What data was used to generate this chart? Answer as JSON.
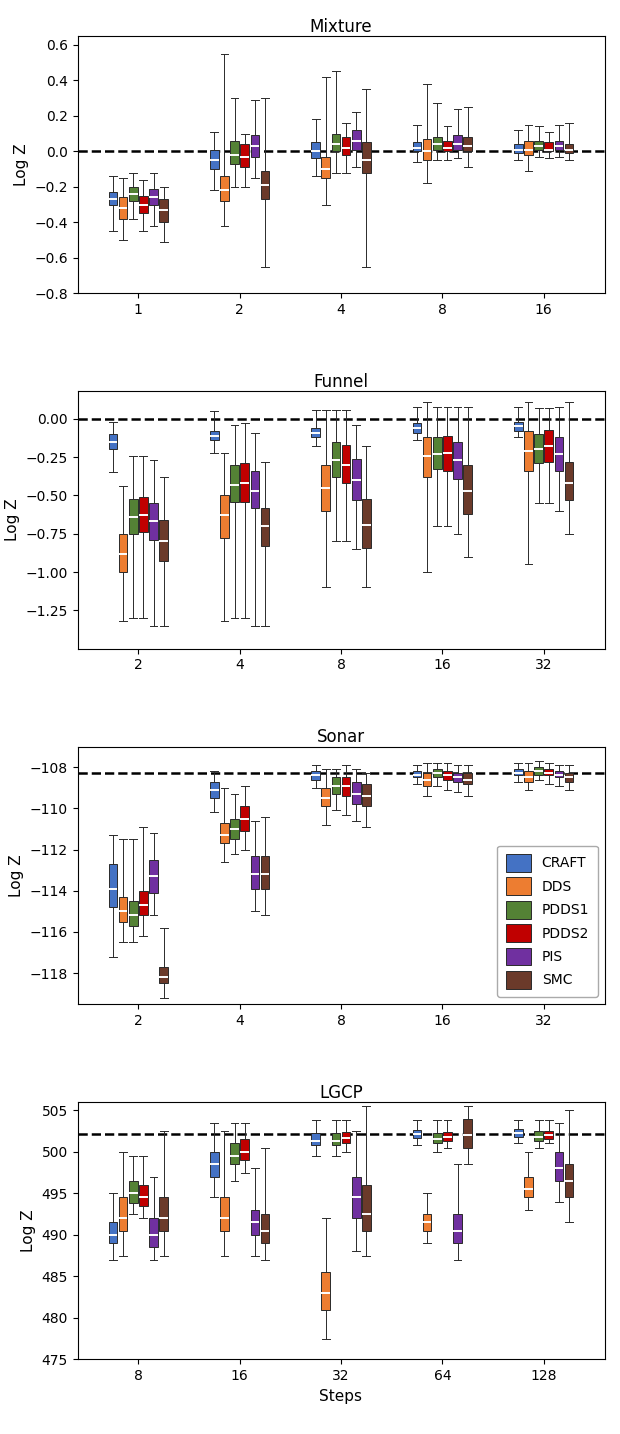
{
  "panels": [
    {
      "title": "Mixture",
      "ylabel": "Log Z",
      "ylim": [
        -0.8,
        0.65
      ],
      "yticks": [
        -0.8,
        -0.6,
        -0.4,
        -0.2,
        0.0,
        0.2,
        0.4,
        0.6
      ],
      "hline": 0.0,
      "xticklabels": [
        "1",
        "2",
        "4",
        "8",
        "16"
      ],
      "xpositions": [
        1,
        2,
        4,
        8,
        16
      ],
      "series": {
        "CRAFT": [
          [
            -0.45,
            -0.3,
            -0.27,
            -0.23,
            -0.14
          ],
          [
            -0.22,
            -0.1,
            -0.05,
            0.01,
            0.11
          ],
          [
            -0.14,
            -0.04,
            0.0,
            0.05,
            0.18
          ],
          [
            -0.06,
            0.0,
            0.02,
            0.05,
            0.15
          ],
          [
            -0.05,
            -0.01,
            0.01,
            0.04,
            0.12
          ]
        ],
        "DDS": [
          [
            -0.5,
            -0.38,
            -0.32,
            -0.26,
            -0.15
          ],
          [
            -0.42,
            -0.28,
            -0.22,
            -0.14,
            0.55
          ],
          [
            -0.3,
            -0.15,
            -0.1,
            -0.03,
            0.42
          ],
          [
            -0.18,
            -0.05,
            0.0,
            0.07,
            0.38
          ],
          [
            -0.11,
            -0.02,
            0.01,
            0.06,
            0.15
          ]
        ],
        "PDDS1": [
          [
            -0.38,
            -0.28,
            -0.24,
            -0.2,
            -0.12
          ],
          [
            -0.2,
            -0.07,
            -0.02,
            0.06,
            0.3
          ],
          [
            -0.12,
            0.0,
            0.04,
            0.1,
            0.45
          ],
          [
            -0.05,
            0.01,
            0.04,
            0.08,
            0.27
          ],
          [
            -0.03,
            0.01,
            0.03,
            0.06,
            0.14
          ]
        ],
        "PDDS2": [
          [
            -0.45,
            -0.35,
            -0.3,
            -0.25,
            -0.16
          ],
          [
            -0.2,
            -0.09,
            -0.03,
            0.04,
            0.1
          ],
          [
            -0.12,
            -0.02,
            0.02,
            0.08,
            0.16
          ],
          [
            -0.05,
            0.0,
            0.02,
            0.06,
            0.14
          ],
          [
            -0.04,
            0.0,
            0.01,
            0.05,
            0.11
          ]
        ],
        "PIS": [
          [
            -0.42,
            -0.3,
            -0.26,
            -0.21,
            -0.12
          ],
          [
            -0.15,
            -0.03,
            0.03,
            0.09,
            0.29
          ],
          [
            -0.09,
            0.01,
            0.06,
            0.12,
            0.22
          ],
          [
            -0.04,
            0.01,
            0.04,
            0.09,
            0.24
          ],
          [
            -0.03,
            0.01,
            0.03,
            0.06,
            0.15
          ]
        ],
        "SMC": [
          [
            -0.51,
            -0.4,
            -0.33,
            -0.27,
            -0.2
          ],
          [
            -0.65,
            -0.27,
            -0.19,
            -0.11,
            0.3
          ],
          [
            -0.65,
            -0.12,
            -0.05,
            0.05,
            0.35
          ],
          [
            -0.09,
            0.0,
            0.03,
            0.08,
            0.25
          ],
          [
            -0.05,
            -0.01,
            0.01,
            0.04,
            0.16
          ]
        ]
      }
    },
    {
      "title": "Funnel",
      "ylabel": "Log Z",
      "ylim": [
        -1.5,
        0.18
      ],
      "yticks": [
        -1.25,
        -1.0,
        -0.75,
        -0.5,
        -0.25,
        0.0
      ],
      "hline": 0.0,
      "xticklabels": [
        "2",
        "4",
        "8",
        "16",
        "32"
      ],
      "xpositions": [
        2,
        4,
        8,
        16,
        32
      ],
      "series": {
        "CRAFT": [
          [
            -0.35,
            -0.2,
            -0.15,
            -0.1,
            -0.02
          ],
          [
            -0.22,
            -0.14,
            -0.11,
            -0.08,
            0.05
          ],
          [
            -0.18,
            -0.12,
            -0.09,
            -0.06,
            0.06
          ],
          [
            -0.14,
            -0.09,
            -0.06,
            -0.03,
            0.08
          ],
          [
            -0.12,
            -0.08,
            -0.05,
            -0.02,
            0.08
          ]
        ],
        "DDS": [
          [
            -1.32,
            -1.0,
            -0.88,
            -0.75,
            -0.44
          ],
          [
            -1.32,
            -0.78,
            -0.63,
            -0.5,
            -0.22
          ],
          [
            -1.1,
            -0.6,
            -0.45,
            -0.3,
            0.06
          ],
          [
            -1.0,
            -0.38,
            -0.24,
            -0.12,
            0.11
          ],
          [
            -0.95,
            -0.34,
            -0.21,
            -0.08,
            0.11
          ]
        ],
        "PDDS1": [
          [
            -1.3,
            -0.75,
            -0.64,
            -0.52,
            -0.24
          ],
          [
            -1.3,
            -0.54,
            -0.43,
            -0.3,
            -0.04
          ],
          [
            -0.8,
            -0.38,
            -0.27,
            -0.15,
            0.06
          ],
          [
            -0.7,
            -0.33,
            -0.23,
            -0.12,
            0.08
          ],
          [
            -0.55,
            -0.29,
            -0.2,
            -0.1,
            0.07
          ]
        ],
        "PDDS2": [
          [
            -1.3,
            -0.74,
            -0.63,
            -0.51,
            -0.24
          ],
          [
            -1.3,
            -0.54,
            -0.42,
            -0.29,
            -0.03
          ],
          [
            -0.8,
            -0.42,
            -0.3,
            -0.17,
            0.06
          ],
          [
            -0.7,
            -0.34,
            -0.22,
            -0.11,
            0.08
          ],
          [
            -0.55,
            -0.28,
            -0.18,
            -0.07,
            0.07
          ]
        ],
        "PIS": [
          [
            -1.35,
            -0.79,
            -0.67,
            -0.55,
            -0.27
          ],
          [
            -1.35,
            -0.58,
            -0.47,
            -0.34,
            -0.09
          ],
          [
            -0.85,
            -0.53,
            -0.4,
            -0.26,
            -0.04
          ],
          [
            -0.75,
            -0.39,
            -0.27,
            -0.15,
            0.08
          ],
          [
            -0.6,
            -0.34,
            -0.23,
            -0.12,
            0.08
          ]
        ],
        "SMC": [
          [
            -1.35,
            -0.93,
            -0.8,
            -0.66,
            -0.38
          ],
          [
            -1.35,
            -0.83,
            -0.7,
            -0.58,
            -0.28
          ],
          [
            -1.1,
            -0.84,
            -0.69,
            -0.52,
            -0.18
          ],
          [
            -0.9,
            -0.62,
            -0.47,
            -0.3,
            0.08
          ],
          [
            -0.75,
            -0.53,
            -0.42,
            -0.28,
            0.11
          ]
        ]
      }
    },
    {
      "title": "Sonar",
      "ylabel": "Log Z",
      "ylim": [
        -119.5,
        -107.0
      ],
      "yticks": [
        -118,
        -116,
        -114,
        -112,
        -110,
        -108
      ],
      "hline": -108.3,
      "xticklabels": [
        "2",
        "4",
        "8",
        "16",
        "32"
      ],
      "xpositions": [
        2,
        4,
        8,
        16,
        32
      ],
      "series": {
        "CRAFT": [
          [
            -117.2,
            -114.8,
            -113.9,
            -112.7,
            -111.3
          ],
          [
            -110.2,
            -109.5,
            -109.1,
            -108.7,
            -108.2
          ],
          [
            -109.0,
            -108.6,
            -108.4,
            -108.2,
            -107.9
          ],
          [
            -108.8,
            -108.5,
            -108.4,
            -108.2,
            -107.9
          ],
          [
            -108.7,
            -108.4,
            -108.3,
            -108.1,
            -107.8
          ]
        ],
        "DDS": [
          [
            -116.5,
            -115.5,
            -115.0,
            -114.3,
            -111.5
          ],
          [
            -112.6,
            -111.7,
            -111.3,
            -110.7,
            -109.0
          ],
          [
            -110.8,
            -109.9,
            -109.5,
            -109.0,
            -108.1
          ],
          [
            -109.4,
            -108.9,
            -108.6,
            -108.3,
            -107.8
          ],
          [
            -109.1,
            -108.7,
            -108.5,
            -108.2,
            -107.8
          ]
        ],
        "PDDS1": [
          [
            -116.5,
            -115.7,
            -115.2,
            -114.5,
            -111.5
          ],
          [
            -112.2,
            -111.5,
            -111.0,
            -110.5,
            -109.3
          ],
          [
            -110.1,
            -109.3,
            -108.9,
            -108.5,
            -108.1
          ],
          [
            -108.9,
            -108.5,
            -108.3,
            -108.1,
            -107.8
          ],
          [
            -108.6,
            -108.4,
            -108.2,
            -108.0,
            -107.7
          ]
        ],
        "PDDS2": [
          [
            -116.2,
            -115.2,
            -114.7,
            -114.0,
            -110.9
          ],
          [
            -112.0,
            -111.1,
            -110.5,
            -109.9,
            -108.9
          ],
          [
            -110.3,
            -109.4,
            -108.9,
            -108.5,
            -107.9
          ],
          [
            -109.1,
            -108.6,
            -108.4,
            -108.2,
            -107.8
          ],
          [
            -108.8,
            -108.4,
            -108.3,
            -108.1,
            -107.8
          ]
        ],
        "PIS": [
          [
            -115.2,
            -114.1,
            -113.3,
            -112.5,
            -111.2
          ],
          [
            -115.0,
            -113.9,
            -113.2,
            -112.3,
            -110.6
          ],
          [
            -110.6,
            -109.8,
            -109.3,
            -108.7,
            -108.1
          ],
          [
            -109.2,
            -108.7,
            -108.5,
            -108.3,
            -107.9
          ],
          [
            -108.9,
            -108.5,
            -108.4,
            -108.2,
            -107.9
          ]
        ],
        "SMC": [
          [
            -119.2,
            -118.5,
            -118.2,
            -117.7,
            -115.8
          ],
          [
            -115.2,
            -113.9,
            -113.2,
            -112.3,
            -110.4
          ],
          [
            -110.9,
            -109.9,
            -109.4,
            -108.8,
            -108.3
          ],
          [
            -109.4,
            -108.8,
            -108.6,
            -108.3,
            -107.9
          ],
          [
            -109.1,
            -108.7,
            -108.5,
            -108.3,
            -107.9
          ]
        ]
      }
    },
    {
      "title": "LGCP",
      "ylabel": "Log Z",
      "ylim": [
        475,
        506
      ],
      "yticks": [
        475,
        480,
        485,
        490,
        495,
        500,
        505
      ],
      "hline": 502.1,
      "xticklabels": [
        "8",
        "16",
        "32",
        "64",
        "128"
      ],
      "xpositions": [
        8,
        16,
        32,
        64,
        128
      ],
      "series": {
        "CRAFT": [
          [
            487.0,
            489.0,
            490.0,
            491.5,
            495.0
          ],
          [
            494.5,
            497.0,
            498.5,
            500.0,
            503.5
          ],
          [
            499.5,
            500.8,
            501.3,
            502.2,
            503.8
          ],
          [
            500.8,
            501.7,
            502.1,
            502.6,
            503.8
          ],
          [
            501.0,
            501.8,
            502.2,
            502.7,
            503.8
          ]
        ],
        "DDS": [
          [
            487.5,
            490.5,
            492.0,
            494.5,
            500.0
          ],
          [
            487.5,
            490.5,
            492.0,
            494.5,
            502.5
          ],
          [
            477.5,
            481.0,
            483.0,
            485.5,
            492.0
          ],
          [
            489.0,
            490.5,
            491.5,
            492.5,
            495.0
          ],
          [
            493.0,
            494.5,
            495.5,
            497.0,
            500.0
          ]
        ],
        "PDDS1": [
          [
            492.5,
            493.8,
            495.0,
            496.5,
            499.5
          ],
          [
            496.5,
            498.5,
            499.5,
            501.0,
            503.5
          ],
          [
            499.5,
            500.8,
            501.3,
            502.2,
            503.8
          ],
          [
            500.0,
            501.0,
            501.5,
            502.3,
            503.8
          ],
          [
            500.5,
            501.3,
            501.8,
            502.5,
            503.8
          ]
        ],
        "PDDS2": [
          [
            492.0,
            493.5,
            494.5,
            496.0,
            499.5
          ],
          [
            497.5,
            499.0,
            500.0,
            501.5,
            503.5
          ],
          [
            500.0,
            501.0,
            501.7,
            502.4,
            503.8
          ],
          [
            500.5,
            501.3,
            501.8,
            502.4,
            503.8
          ],
          [
            501.0,
            501.5,
            502.0,
            502.5,
            503.8
          ]
        ],
        "PIS": [
          [
            487.0,
            488.5,
            490.0,
            492.0,
            497.0
          ],
          [
            487.5,
            490.0,
            491.5,
            493.0,
            498.0
          ],
          [
            488.0,
            492.0,
            494.5,
            497.0,
            502.5
          ],
          [
            487.0,
            489.0,
            490.5,
            492.5,
            498.5
          ],
          [
            494.0,
            496.5,
            498.0,
            500.0,
            503.5
          ]
        ],
        "SMC": [
          [
            487.5,
            490.5,
            492.0,
            494.5,
            502.5
          ],
          [
            487.0,
            489.0,
            490.5,
            492.5,
            500.5
          ],
          [
            487.5,
            490.5,
            492.5,
            496.0,
            505.5
          ],
          [
            498.5,
            500.5,
            502.0,
            504.0,
            505.5
          ],
          [
            491.5,
            494.5,
            496.5,
            498.5,
            505.0
          ]
        ]
      }
    }
  ],
  "colors": {
    "CRAFT": "#4472C4",
    "DDS": "#ED7D31",
    "PDDS1": "#548235",
    "PDDS2": "#C00000",
    "PIS": "#7030A0",
    "SMC": "#6B3A2A"
  },
  "method_order": [
    "CRAFT",
    "DDS",
    "PDDS1",
    "PDDS2",
    "PIS",
    "SMC"
  ],
  "legend_labels": [
    "CRAFT",
    "DDS",
    "PDDS1",
    "PDDS2",
    "PIS",
    "SMC"
  ]
}
